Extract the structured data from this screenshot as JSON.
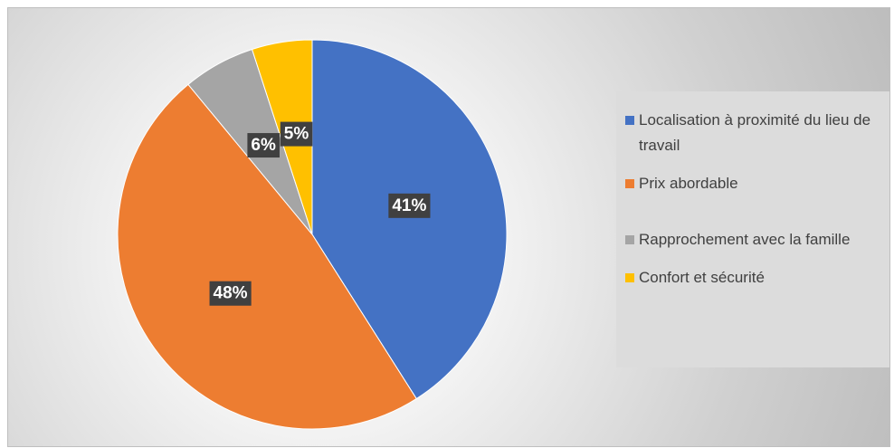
{
  "chart_data": {
    "type": "pie",
    "categories": [
      "Localisation à proximité du lieu de travail",
      "Prix abordable",
      "Rapprochement avec la famille",
      "Confort et sécurité"
    ],
    "values": [
      41,
      48,
      6,
      5
    ],
    "value_labels": [
      "41%",
      "48%",
      "6%",
      "5%"
    ],
    "colors": [
      "#4472c4",
      "#ed7d31",
      "#a5a5a5",
      "#ffc000"
    ],
    "legend": "right"
  }
}
